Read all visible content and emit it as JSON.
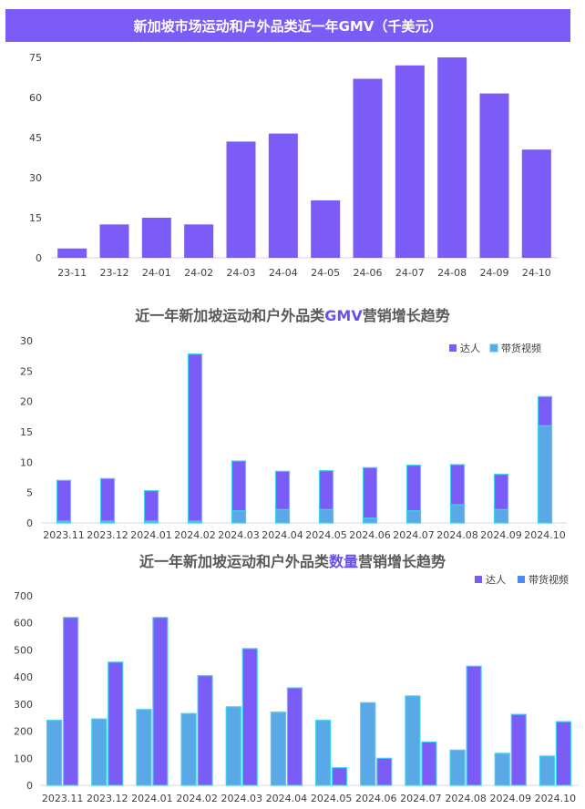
{
  "chart_data": [
    {
      "type": "bar",
      "title": "新加坡市场运动和户外品类近一年GMV（千美元）",
      "categories": [
        "23-11",
        "23-12",
        "24-01",
        "24-02",
        "24-03",
        "24-04",
        "24-05",
        "24-06",
        "24-07",
        "24-08",
        "24-09",
        "24-10"
      ],
      "values": [
        3.5,
        12.5,
        15,
        12.5,
        43.5,
        46.5,
        21.5,
        67,
        72,
        75,
        61.5,
        40.5
      ],
      "ylim": [
        0,
        75
      ],
      "yticks": [
        0,
        15,
        30,
        45,
        60,
        75
      ],
      "colors": {
        "bar": "#7b5cf6"
      }
    },
    {
      "type": "bar",
      "title_prefix": "近一年新加坡运动和户外品类",
      "title_highlight": "GMV",
      "title_suffix": "营销增长趋势",
      "categories": [
        "2023.11",
        "2023.12",
        "2024.01",
        "2024.02",
        "2024.03",
        "2024.04",
        "2024.05",
        "2024.06",
        "2024.07",
        "2024.08",
        "2024.09",
        "2024.10"
      ],
      "stacked": true,
      "series": [
        {
          "name": "带货视频",
          "values": [
            0.3,
            0.3,
            0.3,
            0.3,
            2.0,
            2.2,
            2.2,
            0.8,
            2.0,
            3.0,
            2.2,
            16.0
          ],
          "color": "#5aa9e6"
        },
        {
          "name": "达人",
          "values": [
            6.7,
            7.0,
            5.0,
            27.5,
            8.2,
            6.3,
            6.4,
            8.3,
            7.5,
            6.6,
            5.8,
            4.8
          ],
          "color": "#7b5cf6"
        }
      ],
      "ylim": [
        0,
        30
      ],
      "yticks": [
        0,
        5,
        10,
        15,
        20,
        25,
        30
      ],
      "legend": [
        "达人",
        "带货视频"
      ],
      "legend_position": "top-right"
    },
    {
      "type": "bar",
      "title_prefix": "近一年新加坡运动和户外品类",
      "title_highlight": "数量",
      "title_suffix": "营销增长趋势",
      "categories": [
        "2023.11",
        "2023.12",
        "2024.01",
        "2024.02",
        "2024.03",
        "2024.04",
        "2024.05",
        "2024.06",
        "2024.07",
        "2024.08",
        "2024.09",
        "2024.10"
      ],
      "series": [
        {
          "name": "达人",
          "values": [
            240,
            245,
            280,
            265,
            290,
            270,
            240,
            305,
            330,
            130,
            118,
            108
          ],
          "color": "#5aa9e6"
        },
        {
          "name": "带货视频",
          "values": [
            620,
            455,
            620,
            405,
            505,
            360,
            65,
            100,
            160,
            440,
            262,
            235
          ],
          "color": "#7b5cf6"
        }
      ],
      "ylim": [
        0,
        700
      ],
      "yticks": [
        0,
        100,
        200,
        300,
        400,
        500,
        600,
        700
      ],
      "legend": [
        "达人",
        "带货视频"
      ],
      "legend_position": "top-right"
    }
  ]
}
